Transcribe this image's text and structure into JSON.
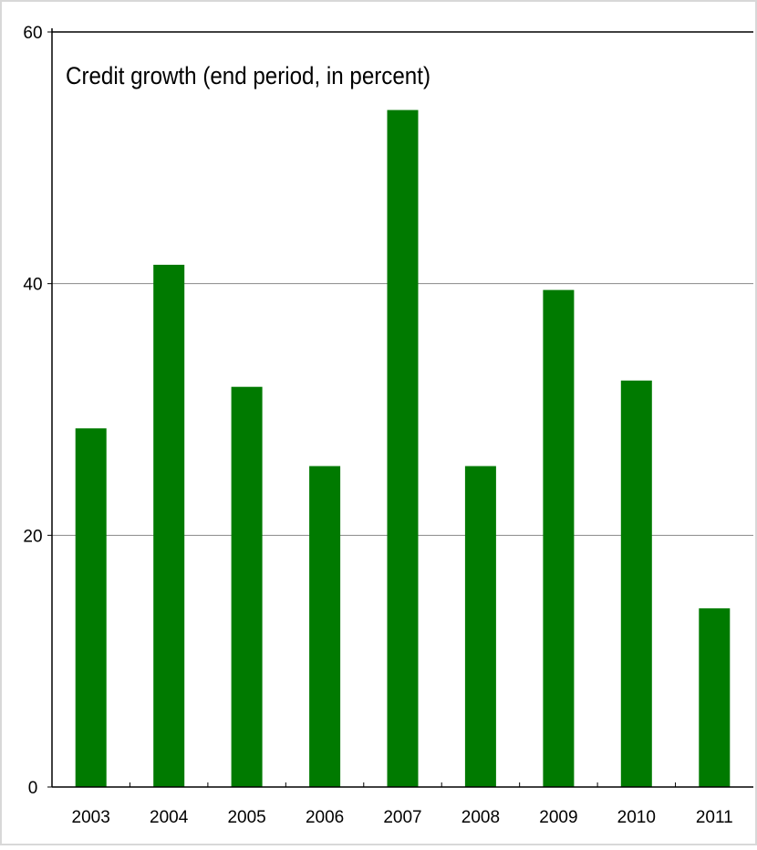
{
  "chart_data": {
    "type": "bar",
    "title": "Credit growth (end period, in percent)",
    "categories": [
      "2003",
      "2004",
      "2005",
      "2006",
      "2007",
      "2008",
      "2009",
      "2010",
      "2011"
    ],
    "values": [
      28.5,
      41.5,
      31.8,
      25.5,
      53.8,
      25.5,
      39.5,
      32.3,
      14.2
    ],
    "ylim": [
      0,
      60
    ],
    "yticks": [
      "0",
      "20",
      "40",
      "60"
    ],
    "grid": true,
    "colors": {
      "bar": "#007a00",
      "grid": "#888888",
      "axis": "#000000"
    }
  }
}
